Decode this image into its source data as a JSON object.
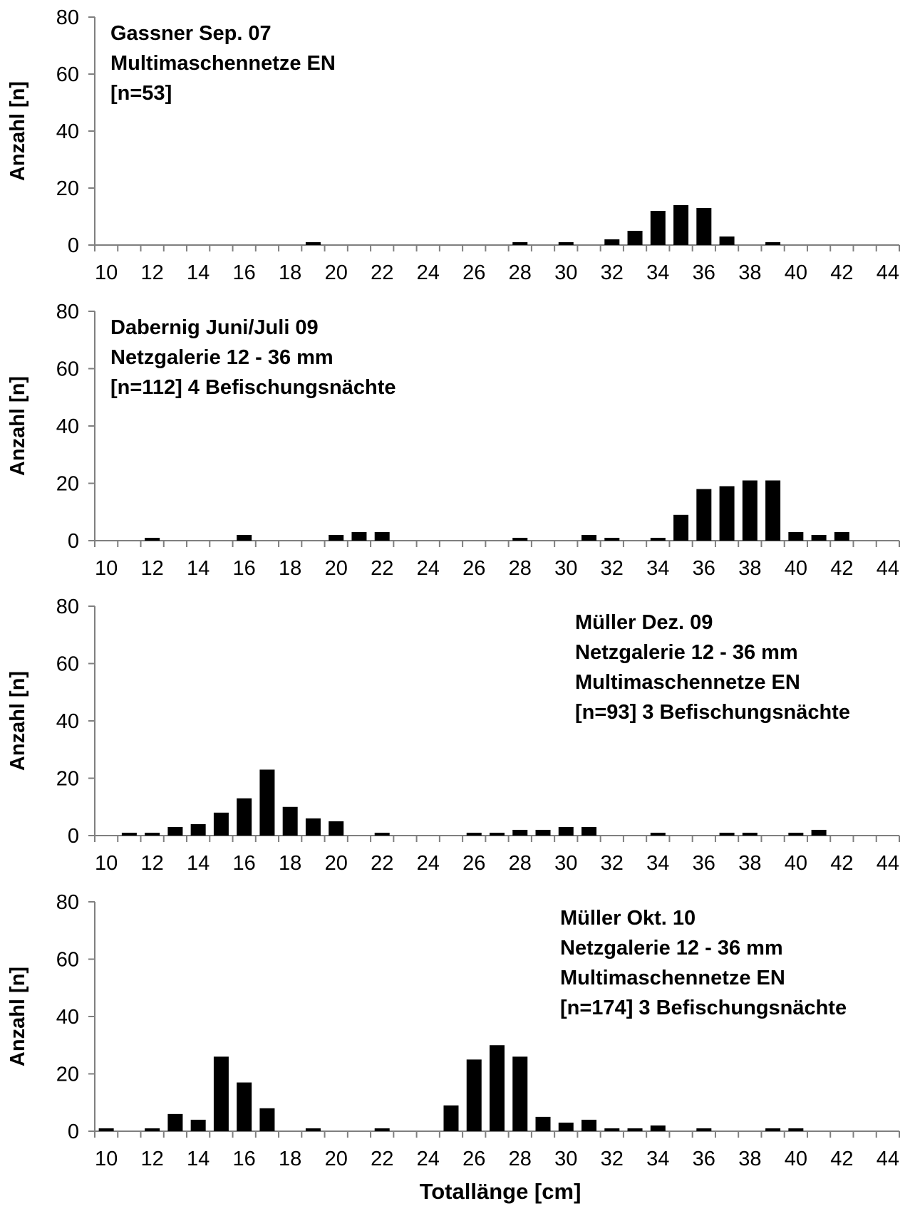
{
  "figure": {
    "xlabel": "Totallänge [cm]"
  },
  "chart_data": [
    {
      "type": "bar",
      "annotation": [
        "Gassner Sep. 07",
        "Multimaschennetze EN",
        "[n=53]"
      ],
      "annotation_placement": "top-left",
      "ylabel": "Anzahl [n]",
      "ylim": [
        0,
        80
      ],
      "yticks": [
        0,
        20,
        40,
        60,
        80
      ],
      "xlim": [
        10,
        45
      ],
      "xticks": [
        10,
        12,
        14,
        16,
        18,
        20,
        22,
        24,
        26,
        28,
        30,
        32,
        34,
        36,
        38,
        40,
        42,
        44
      ],
      "x": [
        19,
        28,
        30,
        32,
        33,
        34,
        35,
        36,
        37,
        39
      ],
      "values": [
        1,
        1,
        1,
        2,
        5,
        12,
        14,
        13,
        3,
        1
      ]
    },
    {
      "type": "bar",
      "annotation": [
        "Dabernig Juni/Juli 09",
        "Netzgalerie 12 - 36 mm",
        "[n=112] 4 Befischungsnächte"
      ],
      "annotation_placement": "top-left",
      "ylabel": "Anzahl [n]",
      "ylim": [
        0,
        80
      ],
      "yticks": [
        0,
        20,
        40,
        60,
        80
      ],
      "xlim": [
        10,
        45
      ],
      "xticks": [
        10,
        12,
        14,
        16,
        18,
        20,
        22,
        24,
        26,
        28,
        30,
        32,
        34,
        36,
        38,
        40,
        42,
        44
      ],
      "x": [
        12,
        16,
        20,
        21,
        22,
        28,
        31,
        32,
        34,
        35,
        36,
        37,
        38,
        39,
        40,
        41,
        42
      ],
      "values": [
        1,
        2,
        2,
        3,
        3,
        1,
        2,
        1,
        1,
        9,
        18,
        19,
        21,
        21,
        3,
        2,
        3
      ]
    },
    {
      "type": "bar",
      "annotation": [
        "Müller Dez. 09",
        "Netzgalerie 12 - 36 mm",
        "Multimaschennetze EN",
        "[n=93] 3 Befischungsnächte"
      ],
      "annotation_placement": "top-right",
      "ylabel": "Anzahl [n]",
      "ylim": [
        0,
        80
      ],
      "yticks": [
        0,
        20,
        40,
        60,
        80
      ],
      "xlim": [
        10,
        45
      ],
      "xticks": [
        10,
        12,
        14,
        16,
        18,
        20,
        22,
        24,
        26,
        28,
        30,
        32,
        34,
        36,
        38,
        40,
        42,
        44
      ],
      "x": [
        11,
        12,
        13,
        14,
        15,
        16,
        17,
        18,
        19,
        20,
        22,
        26,
        27,
        28,
        29,
        30,
        31,
        34,
        37,
        38,
        40,
        41
      ],
      "values": [
        1,
        1,
        3,
        4,
        8,
        13,
        23,
        10,
        6,
        5,
        1,
        1,
        1,
        2,
        2,
        3,
        3,
        1,
        1,
        1,
        1,
        2
      ]
    },
    {
      "type": "bar",
      "annotation": [
        "Müller Okt. 10",
        "Netzgalerie 12 - 36 mm",
        "Multimaschennetze EN",
        "[n=174] 3 Befischungsnächte"
      ],
      "annotation_placement": "top-right",
      "ylabel": "Anzahl [n]",
      "ylim": [
        0,
        80
      ],
      "yticks": [
        0,
        20,
        40,
        60,
        80
      ],
      "xlim": [
        10,
        45
      ],
      "xticks": [
        10,
        12,
        14,
        16,
        18,
        20,
        22,
        24,
        26,
        28,
        30,
        32,
        34,
        36,
        38,
        40,
        42,
        44
      ],
      "x": [
        10,
        12,
        13,
        14,
        15,
        16,
        17,
        19,
        22,
        25,
        26,
        27,
        28,
        29,
        30,
        31,
        32,
        33,
        34,
        36,
        39,
        40
      ],
      "values": [
        1,
        1,
        6,
        4,
        26,
        17,
        8,
        1,
        1,
        9,
        25,
        30,
        26,
        5,
        3,
        4,
        1,
        1,
        2,
        1,
        1,
        1
      ]
    }
  ]
}
